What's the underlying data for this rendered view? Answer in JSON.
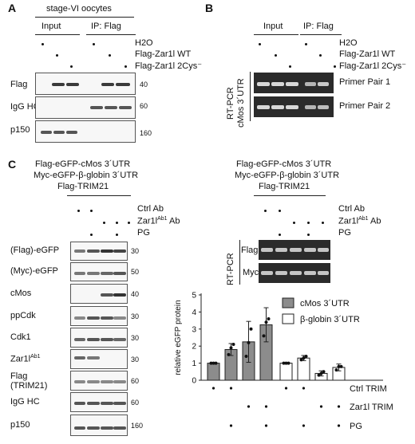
{
  "panel_a": {
    "letter": "A",
    "title": "stage-VI oocytes",
    "group_input": "Input",
    "group_ip": "IP: Flag",
    "conditions": [
      "H2O",
      "Flag-Zar1l WT",
      "Flag-Zar1l 2Cys⁻"
    ],
    "blots": [
      {
        "label": "Flag",
        "mw": "40"
      },
      {
        "label": "IgG HC",
        "mw": "60"
      },
      {
        "label": "p150",
        "mw": "160"
      }
    ]
  },
  "panel_b": {
    "letter": "B",
    "group_input": "Input",
    "group_ip": "IP: Flag",
    "conditions": [
      "H2O",
      "Flag-Zar1l WT",
      "Flag-Zar1l 2Cys⁻"
    ],
    "side_label_1": "RT-PCR",
    "side_label_2": "cMos 3´UTR",
    "gels": [
      "Primer Pair 1",
      "Primer Pair 2"
    ]
  },
  "panel_c": {
    "letter": "C",
    "left_header": [
      "Flag-eGFP-cMos 3´UTR",
      "Myc-eGFP-β-globin 3´UTR",
      "Flag-TRIM21"
    ],
    "right_header": [
      "Flag-eGFP-cMos 3´UTR",
      "Myc-eGFP-β-globin 3´UTR",
      "Flag-TRIM21"
    ],
    "treatments": {
      "ctrl": "Ctrl Ab",
      "zar1": "Zar1l",
      "zar1_sup": "Ab1",
      "zar1_suffix": "Ab",
      "pg": "PG"
    },
    "blots": [
      {
        "label": "(Flag)-eGFP",
        "mw": "30"
      },
      {
        "label": "(Myc)-eGFP",
        "mw": "50"
      },
      {
        "label": "cMos",
        "mw": "40"
      },
      {
        "label": "ppCdk",
        "mw": "30"
      },
      {
        "label": "Cdk1",
        "mw": "30"
      },
      {
        "label": "Zar1l",
        "label_sup": "Ab1",
        "mw": "30"
      },
      {
        "label": "Flag",
        "label2": "(TRIM21)",
        "mw": "60"
      },
      {
        "label": "IgG HC",
        "mw": "60"
      },
      {
        "label": "p150",
        "mw": "160"
      }
    ],
    "rtpcr_side": "RT-PCR",
    "rtpcr_gels": [
      "Flag",
      "Myc"
    ]
  },
  "chart_data": {
    "type": "bar",
    "ylabel": "relative eGFP protein",
    "ylim": [
      0,
      5
    ],
    "yticks": [
      "0",
      "1",
      "2",
      "3",
      "4",
      "5"
    ],
    "legend": "top-right",
    "series": [
      {
        "name": "cMos 3´UTR",
        "color": "#8c8c8c",
        "values": [
          1.0,
          1.8,
          2.25,
          3.25
        ],
        "errors": [
          0.0,
          0.35,
          1.2,
          1.0
        ],
        "points": [
          [
            1.0,
            1.0,
            1.0
          ],
          [
            1.5,
            1.9,
            2.1
          ],
          [
            1.4,
            2.2,
            3.0
          ],
          [
            2.6,
            3.4,
            3.6
          ]
        ]
      },
      {
        "name": "β-globin 3´UTR",
        "color": "#ffffff",
        "values": [
          1.0,
          1.3,
          0.4,
          0.75
        ],
        "errors": [
          0.0,
          0.15,
          0.15,
          0.2
        ],
        "points": [
          [
            1.0,
            1.0,
            1.0
          ],
          [
            1.2,
            1.3,
            1.4
          ],
          [
            0.3,
            0.4,
            0.5
          ],
          [
            0.6,
            0.8,
            0.8
          ]
        ]
      }
    ],
    "condition_rows": [
      "Ctrl TRIM",
      "Zar1l TRIM",
      "PG"
    ],
    "condition_matrix": [
      [
        1,
        1,
        0,
        0
      ],
      [
        0,
        0,
        1,
        1
      ],
      [
        0,
        1,
        0,
        1
      ]
    ]
  }
}
